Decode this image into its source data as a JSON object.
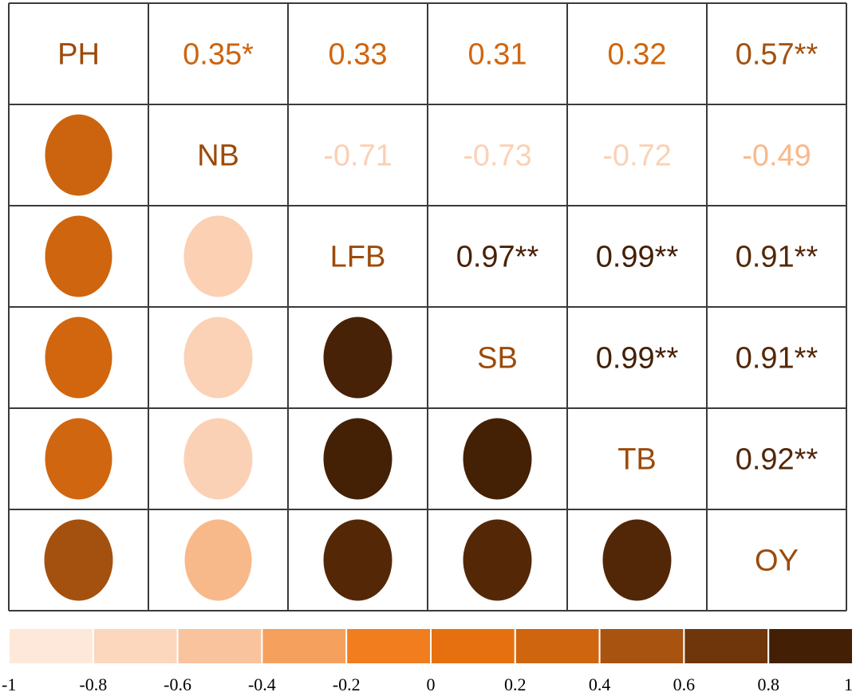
{
  "chart_data": {
    "type": "heatmap",
    "variables": [
      "PH",
      "NB",
      "LFB",
      "SB",
      "TB",
      "OY"
    ],
    "matrix": [
      [
        null,
        0.35,
        0.33,
        0.31,
        0.32,
        0.57
      ],
      [
        0.35,
        null,
        -0.71,
        -0.73,
        -0.72,
        -0.49
      ],
      [
        0.33,
        -0.71,
        null,
        0.97,
        0.99,
        0.91
      ],
      [
        0.31,
        -0.73,
        0.97,
        null,
        0.99,
        0.91
      ],
      [
        0.32,
        -0.72,
        0.99,
        0.99,
        null,
        0.92
      ],
      [
        0.57,
        -0.49,
        0.91,
        0.91,
        0.92,
        null
      ]
    ],
    "upper_labels": [
      [
        null,
        "0.35*",
        "0.33",
        "0.31",
        "0.32",
        "0.57**"
      ],
      [
        null,
        null,
        "-0.71",
        "-0.73",
        "-0.72",
        "-0.49"
      ],
      [
        null,
        null,
        null,
        "0.97**",
        "0.99**",
        "0.91**"
      ],
      [
        null,
        null,
        null,
        null,
        "0.99**",
        "0.91**"
      ],
      [
        null,
        null,
        null,
        null,
        null,
        "0.92**"
      ],
      [
        null,
        null,
        null,
        null,
        null,
        null
      ]
    ],
    "lower_display": "ellipse",
    "colorbar": {
      "ticks": [
        "-1",
        "-0.8",
        "-0.6",
        "-0.4",
        "-0.2",
        "0",
        "0.2",
        "0.4",
        "0.6",
        "0.8",
        "1"
      ],
      "range": [
        -1,
        1
      ],
      "colors": [
        "#fde8d9",
        "#fcd6bd",
        "#f9c39d",
        "#f5a05d",
        "#f17d1e",
        "#e6700f",
        "#cf650f",
        "#a8530f",
        "#6f360b",
        "#421f05"
      ]
    },
    "label_color": "#9c4a0a",
    "grid": true
  }
}
